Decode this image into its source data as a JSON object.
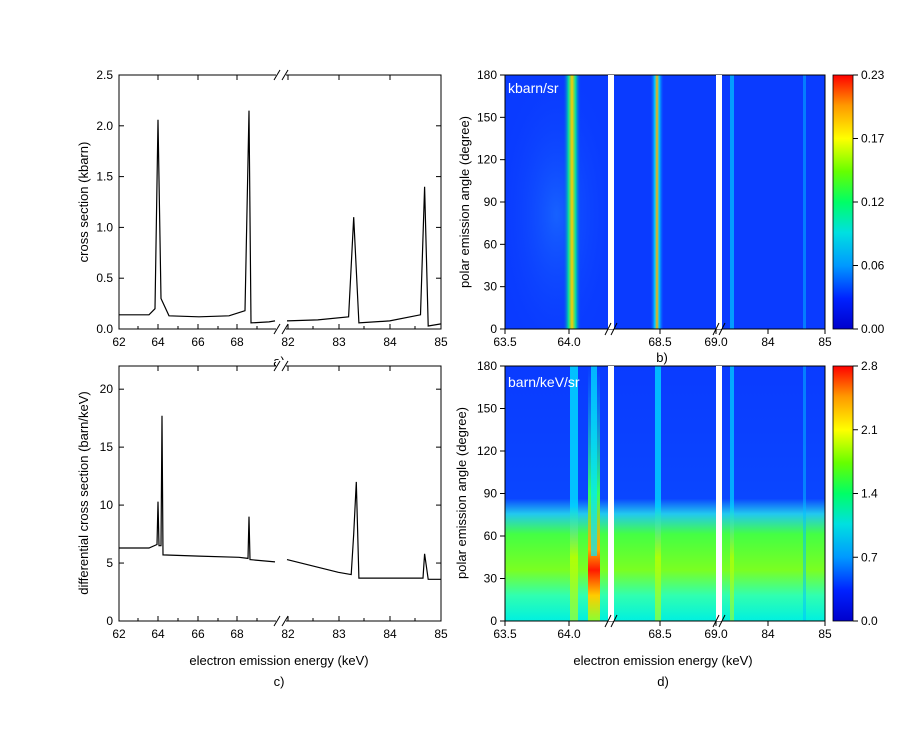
{
  "chart_data": [
    {
      "type": "line",
      "panel_label": "a)",
      "xlabel": "",
      "ylabel": "cross section (kbarn)",
      "xticks": [
        "62",
        "64",
        "66",
        "68",
        "82",
        "83",
        "84",
        "85"
      ],
      "yticks": [
        "0.0",
        "0.5",
        "1.0",
        "1.5",
        "2.0",
        "2.5"
      ],
      "ylim": [
        0,
        2.5
      ],
      "axis_break_after": "68",
      "series": [
        {
          "points": [
            [
              62,
              0.14
            ],
            [
              63.5,
              0.14
            ],
            [
              63.8,
              0.2
            ],
            [
              63.95,
              2.06
            ],
            [
              64.1,
              0.3
            ],
            [
              64.5,
              0.13
            ],
            [
              66,
              0.12
            ],
            [
              67.5,
              0.13
            ],
            [
              68.3,
              0.18
            ],
            [
              68.5,
              2.15
            ],
            [
              68.6,
              0.06
            ],
            [
              69.5,
              0.07
            ],
            [
              69.8,
              0.08
            ],
            [
              82,
              0.08
            ],
            [
              82.6,
              0.09
            ],
            [
              83.2,
              0.12
            ],
            [
              83.3,
              1.1
            ],
            [
              83.4,
              0.06
            ],
            [
              84.0,
              0.08
            ],
            [
              84.6,
              0.14
            ],
            [
              84.68,
              1.4
            ],
            [
              84.75,
              0.03
            ],
            [
              85,
              0.05
            ]
          ]
        }
      ]
    },
    {
      "type": "heatmap",
      "panel_label": "b)",
      "xlabel": "",
      "ylabel": "polar emission angle (degree)",
      "xticks": [
        "63.5",
        "64.0",
        "68.5",
        "69.0",
        "84",
        "85"
      ],
      "yticks": [
        "0",
        "30",
        "60",
        "90",
        "120",
        "150",
        "180"
      ],
      "ylim": [
        0,
        180
      ],
      "unit_label": "kbarn/sr",
      "colorbar_ticks": [
        "0.00",
        "0.06",
        "0.12",
        "0.17",
        "0.23"
      ],
      "colorbar_range": [
        0,
        0.23
      ],
      "peaks_keV": [
        63.95,
        68.5,
        83.3,
        84.68
      ]
    },
    {
      "type": "line",
      "panel_label": "c)",
      "xlabel": "electron emission energy (keV)",
      "ylabel": "differential cross section (barn/keV)",
      "xticks": [
        "62",
        "64",
        "66",
        "68",
        "82",
        "83",
        "84",
        "85"
      ],
      "yticks": [
        "0",
        "5",
        "10",
        "15",
        "20"
      ],
      "ylim": [
        0,
        22
      ],
      "axis_break_after": "68",
      "series": [
        {
          "points": [
            [
              62,
              6.3
            ],
            [
              63.5,
              6.3
            ],
            [
              63.9,
              6.6
            ],
            [
              63.95,
              10.3
            ],
            [
              64.0,
              6.5
            ],
            [
              64.1,
              6.5
            ],
            [
              64.15,
              17.7
            ],
            [
              64.2,
              5.7
            ],
            [
              66,
              5.6
            ],
            [
              68,
              5.5
            ],
            [
              68.45,
              5.4
            ],
            [
              68.5,
              9.0
            ],
            [
              68.55,
              5.3
            ],
            [
              69.8,
              5.1
            ],
            [
              82,
              5.3
            ],
            [
              83.0,
              4.2
            ],
            [
              83.25,
              4.0
            ],
            [
              83.3,
              7.5
            ],
            [
              83.35,
              12.0
            ],
            [
              83.4,
              3.7
            ],
            [
              84.0,
              3.7
            ],
            [
              84.65,
              3.7
            ],
            [
              84.68,
              5.8
            ],
            [
              84.75,
              3.6
            ],
            [
              85,
              3.6
            ]
          ]
        }
      ]
    },
    {
      "type": "heatmap",
      "panel_label": "d)",
      "xlabel": "electron emission energy (keV)",
      "ylabel": "polar emission angle (degree)",
      "xticks": [
        "63.5",
        "64.0",
        "68.5",
        "69.0",
        "84",
        "85"
      ],
      "yticks": [
        "0",
        "30",
        "60",
        "90",
        "120",
        "150",
        "180"
      ],
      "ylim": [
        0,
        180
      ],
      "unit_label": "barn/keV/sr",
      "colorbar_ticks": [
        "0.0",
        "0.7",
        "1.4",
        "2.1",
        "2.8"
      ],
      "colorbar_range": [
        0,
        2.8
      ],
      "peaks_keV": [
        63.95,
        64.15,
        68.5,
        83.3,
        84.68
      ]
    }
  ]
}
